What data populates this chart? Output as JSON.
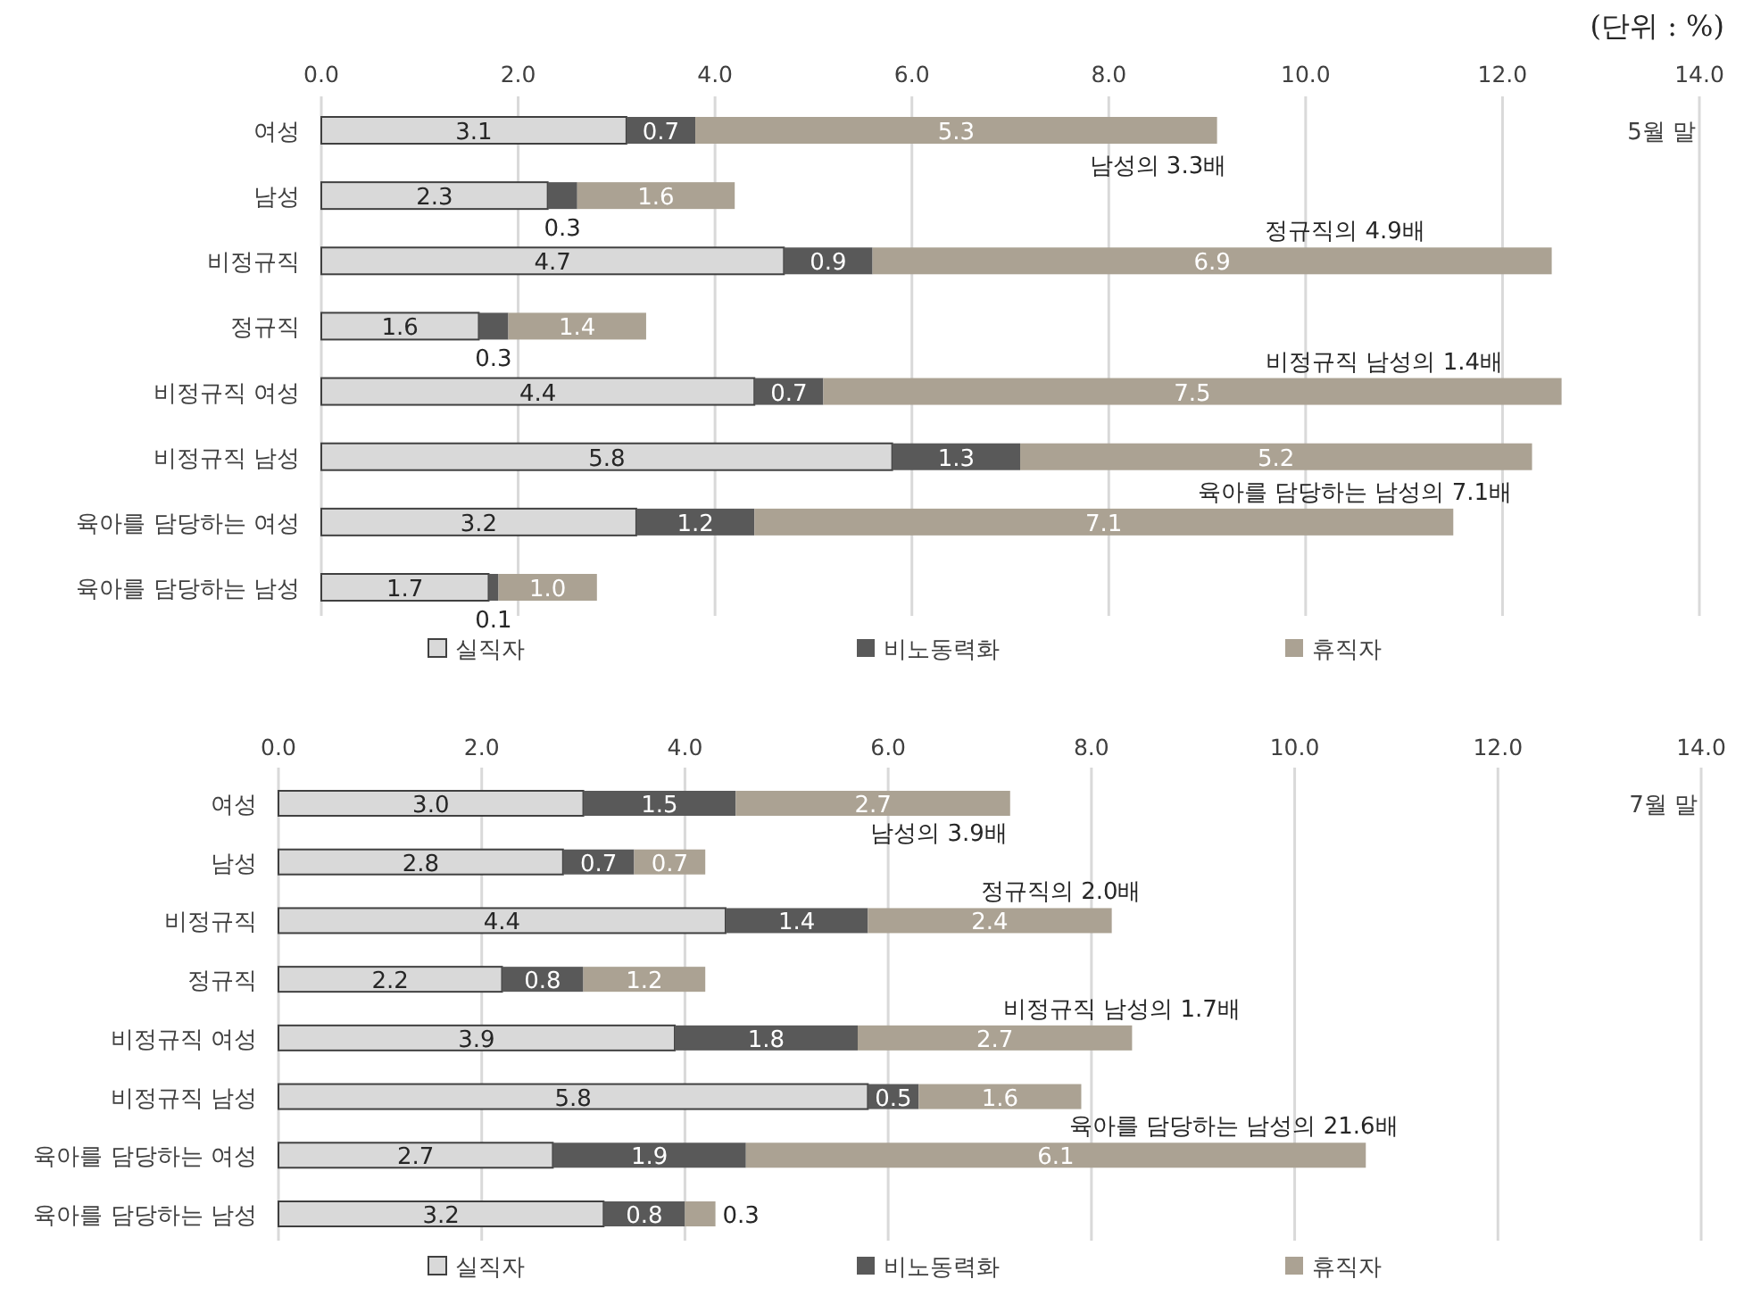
{
  "chart_data": [
    {
      "type": "bar",
      "orientation": "horizontal",
      "stacked": true,
      "grid": "x",
      "legend": "bottom",
      "categories": [
        "여성",
        "남성",
        "비정규직",
        "정규직",
        "비정규직 여성",
        "비정규직 남성",
        "육아를 담당하는 여성",
        "육아를 담당하는 남성"
      ],
      "series": [
        {
          "name": "실직자",
          "color": "#d9d9d9",
          "values": [
            3.1,
            2.3,
            4.7,
            1.6,
            4.4,
            5.8,
            3.2,
            1.7
          ],
          "value_labels": [
            "3.1",
            "2.3",
            "4.7",
            "1.6",
            "4.4",
            "5.8",
            "3.2",
            "1.7"
          ]
        },
        {
          "name": "비노동력화",
          "color": "#595959",
          "values": [
            0.7,
            0.3,
            0.9,
            0.3,
            0.7,
            1.3,
            1.2,
            0.1
          ],
          "value_labels": [
            "0.7",
            "0.3",
            "0.9",
            "0.3",
            "0.7",
            "1.3",
            "1.2",
            "0.1"
          ]
        },
        {
          "name": "휴직자",
          "color": "#aba293",
          "values": [
            5.3,
            1.6,
            6.9,
            1.4,
            7.5,
            5.2,
            7.1,
            1.0
          ],
          "value_labels": [
            "5.3",
            "1.6",
            "6.9",
            "1.4",
            "7.5",
            "5.2",
            "7.1",
            "1.0"
          ]
        }
      ],
      "xlim": [
        0,
        14
      ],
      "xticks": [
        {
          "value": 0,
          "label": "0.0"
        },
        {
          "value": 2,
          "label": "2.0"
        },
        {
          "value": 4,
          "label": "4.0"
        },
        {
          "value": 6,
          "label": "6.0"
        },
        {
          "value": 8,
          "label": "8.0"
        },
        {
          "value": 10,
          "label": "10.0"
        },
        {
          "value": 12,
          "label": "12.0"
        },
        {
          "value": 14,
          "label": "14.0"
        }
      ],
      "annotations": [
        "(단위 : %)",
        "5월 말",
        "남성의 3.3배",
        "정규직의 4.9배",
        "비정규직 남성의 1.4배",
        "육아를 담당하는 남성의 7.1배"
      ]
    },
    {
      "type": "bar",
      "orientation": "horizontal",
      "stacked": true,
      "grid": "x",
      "legend": "bottom",
      "categories": [
        "여성",
        "남성",
        "비정규직",
        "정규직",
        "비정규직 여성",
        "비정규직 남성",
        "육아를 담당하는 여성",
        "육아를 담당하는 남성"
      ],
      "series": [
        {
          "name": "실직자",
          "color": "#d9d9d9",
          "values": [
            3.0,
            2.8,
            4.4,
            2.2,
            3.9,
            5.8,
            2.7,
            3.2
          ],
          "value_labels": [
            "3.0",
            "2.8",
            "4.4",
            "2.2",
            "3.9",
            "5.8",
            "2.7",
            "3.2"
          ]
        },
        {
          "name": "비노동력화",
          "color": "#595959",
          "values": [
            1.5,
            0.7,
            1.4,
            0.8,
            1.8,
            0.5,
            1.9,
            0.8
          ],
          "value_labels": [
            "1.5",
            "0.7",
            "1.4",
            "0.8",
            "1.8",
            "0.5",
            "1.9",
            "0.8"
          ]
        },
        {
          "name": "휴직자",
          "color": "#aba293",
          "values": [
            2.7,
            0.7,
            2.4,
            1.2,
            2.7,
            1.6,
            6.1,
            0.3
          ],
          "value_labels": [
            "2.7",
            "0.7",
            "2.4",
            "1.2",
            "2.7",
            "1.6",
            "6.1",
            "0.3"
          ]
        }
      ],
      "xlim": [
        0,
        14
      ],
      "xticks": [
        {
          "value": 0,
          "label": "0.0"
        },
        {
          "value": 2,
          "label": "2.0"
        },
        {
          "value": 4,
          "label": "4.0"
        },
        {
          "value": 6,
          "label": "6.0"
        },
        {
          "value": 8,
          "label": "8.0"
        },
        {
          "value": 10,
          "label": "10.0"
        },
        {
          "value": 12,
          "label": "12.0"
        },
        {
          "value": 14,
          "label": "14.0"
        }
      ],
      "annotations": [
        "7월 말",
        "남성의 3.9배",
        "정규직의 2.0배",
        "비정규직 남성의 1.7배",
        "육아를 담당하는 남성의 21.6배"
      ]
    }
  ]
}
